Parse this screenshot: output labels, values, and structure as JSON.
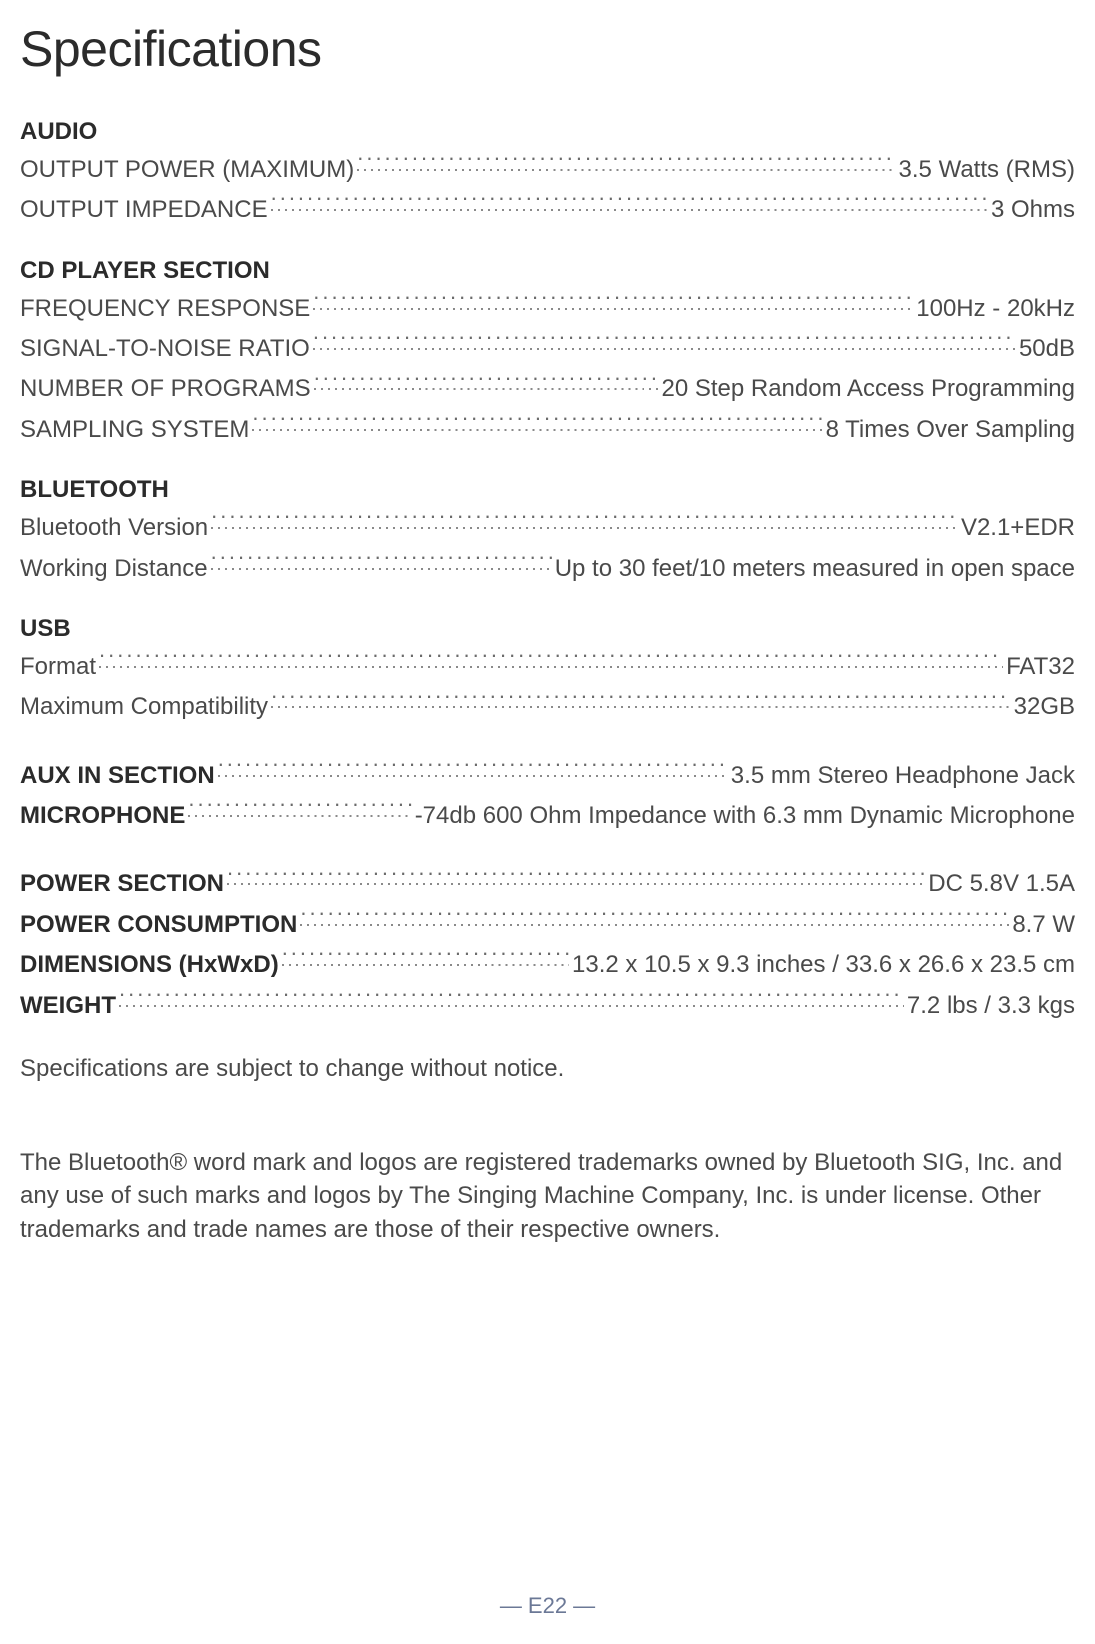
{
  "title": "Specifications",
  "sections": {
    "audio": {
      "header": "AUDIO",
      "items": [
        {
          "label": "OUTPUT POWER (MAXIMUM)",
          "value": "3.5 Watts (RMS)"
        },
        {
          "label": "OUTPUT IMPEDANCE",
          "value": "3 Ohms"
        }
      ]
    },
    "cd": {
      "header": "CD PLAYER SECTION",
      "items": [
        {
          "label": "FREQUENCY RESPONSE",
          "value": "100Hz - 20kHz"
        },
        {
          "label": "SIGNAL-TO-NOISE RATIO",
          "value": "50dB"
        },
        {
          "label": "NUMBER OF PROGRAMS",
          "value": "20 Step Random Access Programming"
        },
        {
          "label": "SAMPLING SYSTEM",
          "value": "8 Times Over Sampling"
        }
      ]
    },
    "bluetooth": {
      "header": "BLUETOOTH",
      "items": [
        {
          "label": "Bluetooth Version",
          "value": "V2.1+EDR"
        },
        {
          "label": "Working Distance",
          "value": "Up to 30 feet/10 meters measured in open space"
        }
      ]
    },
    "usb": {
      "header": "USB",
      "items": [
        {
          "label": "Format",
          "value": "FAT32"
        },
        {
          "label": "Maximum Compatibility",
          "value": "32GB"
        }
      ]
    },
    "misc": [
      {
        "label": "AUX IN SECTION ",
        "bold": true,
        "value": "3.5 mm Stereo Headphone Jack"
      },
      {
        "label": "MICROPHONE",
        "bold": true,
        "value": "-74db 600 Ohm Impedance with 6.3 mm Dynamic Microphone"
      }
    ],
    "power": [
      {
        "label": "POWER SECTION",
        "bold": true,
        "value": "DC 5.8V 1.5A"
      },
      {
        "label": "POWER CONSUMPTION",
        "bold": true,
        "value": "8.7 W"
      },
      {
        "label": "DIMENSIONS (HxWxD) ",
        "bold": true,
        "value": "13.2 x 10.5 x 9.3 inches / 33.6 x 26.6 x 23.5 cm"
      },
      {
        "label": "WEIGHT",
        "bold": true,
        "value": "7.2 lbs / 3.3 kgs"
      }
    ]
  },
  "note": "Specifications are subject to change without notice.",
  "trademark": "The Bluetooth® word mark and logos are registered trademarks owned by Bluetooth SIG, Inc. and any use of such marks and logos by The Singing Machine Company, Inc. is under license. Other trademarks and trade names are those of their respective owners.",
  "pageNumber": "— E22 —"
}
